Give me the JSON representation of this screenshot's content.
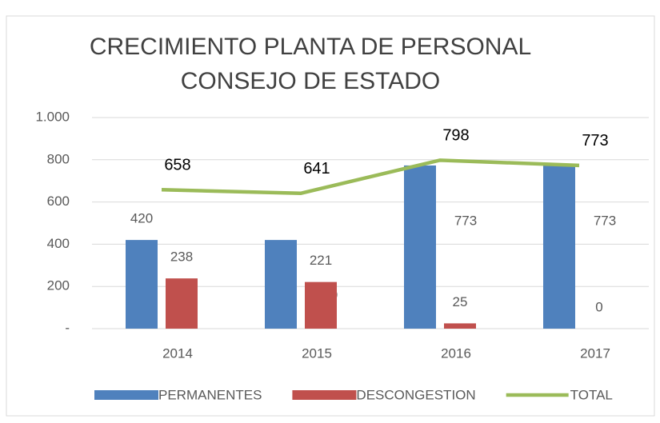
{
  "chart_data": {
    "type": "bar_line",
    "title": [
      "CRECIMIENTO PLANTA DE PERSONAL",
      "CONSEJO DE ESTADO"
    ],
    "categories": [
      "2014",
      "2015",
      "2016",
      "2017"
    ],
    "series": [
      {
        "name": "PERMANENTES",
        "color": "#4f81bd",
        "type": "bar",
        "values": [
          420,
          420,
          773,
          773
        ]
      },
      {
        "name": "DESCONGESTION",
        "color": "#c0504d",
        "type": "bar",
        "values": [
          238,
          221,
          25,
          0
        ]
      },
      {
        "name": "TOTAL",
        "color": "#9bbb59",
        "type": "line",
        "values": [
          658,
          641,
          798,
          773
        ]
      }
    ],
    "ylim": [
      0,
      1000
    ],
    "yticks": [
      {
        "value": 0,
        "label": "-"
      },
      200,
      400,
      600,
      800,
      {
        "value": 1000,
        "label": "1.000"
      }
    ],
    "grid": true,
    "legend": "bottom"
  }
}
